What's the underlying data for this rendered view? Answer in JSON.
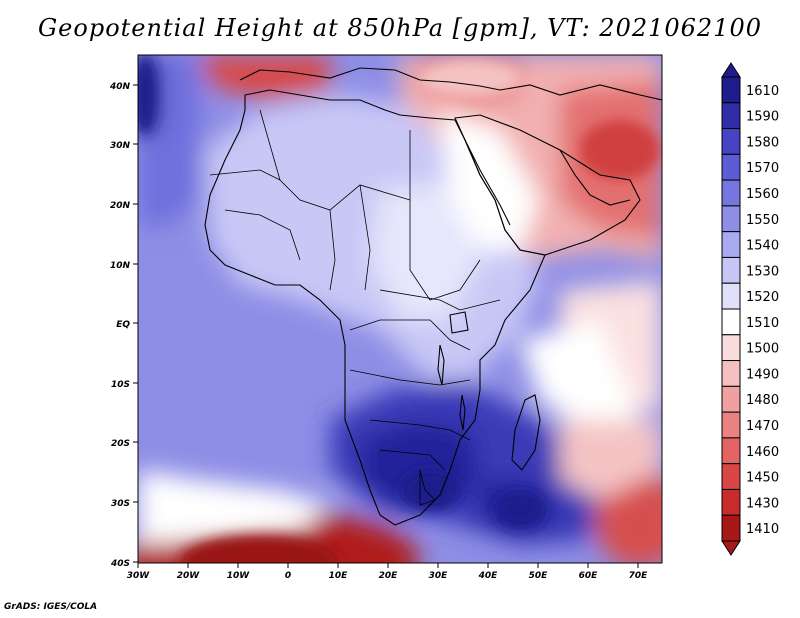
{
  "title": "Geopotential Height at 850hPa [gpm], VT: 2021062100",
  "credit": "GrADS: IGES/COLA",
  "map": {
    "lon_range": [
      -30,
      75
    ],
    "lat_range": [
      -40,
      45
    ],
    "lon_ticks": [
      "30W",
      "20W",
      "10W",
      "0",
      "10E",
      "20E",
      "30E",
      "40E",
      "50E",
      "60E",
      "70E"
    ],
    "lat_ticks": [
      "40N",
      "30N",
      "20N",
      "10N",
      "EQ",
      "10S",
      "20S",
      "30S",
      "40S"
    ]
  },
  "colorbar": {
    "labels": [
      "1610",
      "1590",
      "1580",
      "1570",
      "1560",
      "1550",
      "1540",
      "1530",
      "1520",
      "1510",
      "1500",
      "1490",
      "1480",
      "1470",
      "1460",
      "1450",
      "1430",
      "1410"
    ],
    "colors": [
      "#1f1d8c",
      "#2f2ea8",
      "#4444c4",
      "#5c5cd6",
      "#7676e0",
      "#8f8fe8",
      "#aaaaf0",
      "#c6c6f6",
      "#e0e0fa",
      "#ffffff",
      "#fbdcdc",
      "#f6c0c0",
      "#f0a0a0",
      "#ea8282",
      "#e26464",
      "#d84646",
      "#c82c2c",
      "#a81818"
    ]
  },
  "colors": {
    "ocean_base": "#8e8ee6",
    "land_base": "#d8d8f8"
  }
}
